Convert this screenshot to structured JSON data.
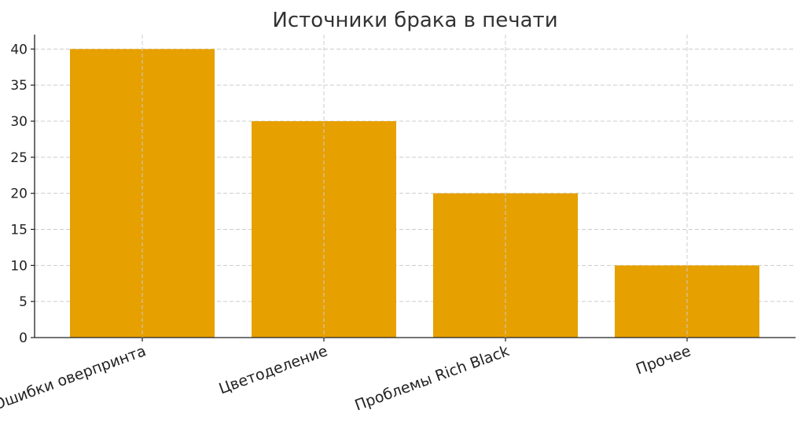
{
  "chart_data": {
    "type": "bar",
    "title": "Источники брака в печати",
    "xlabel": "",
    "ylabel": "",
    "categories": [
      "Ошибки оверпринта",
      "Цветоделение",
      "Проблемы Rich Black",
      "Прочее"
    ],
    "values": [
      40,
      30,
      20,
      10
    ],
    "ylim": [
      0,
      42
    ],
    "yticks": [
      0,
      5,
      10,
      15,
      20,
      25,
      30,
      35,
      40
    ],
    "grid": true,
    "bar_color": "#e6a000",
    "xtick_rotation": -20
  }
}
